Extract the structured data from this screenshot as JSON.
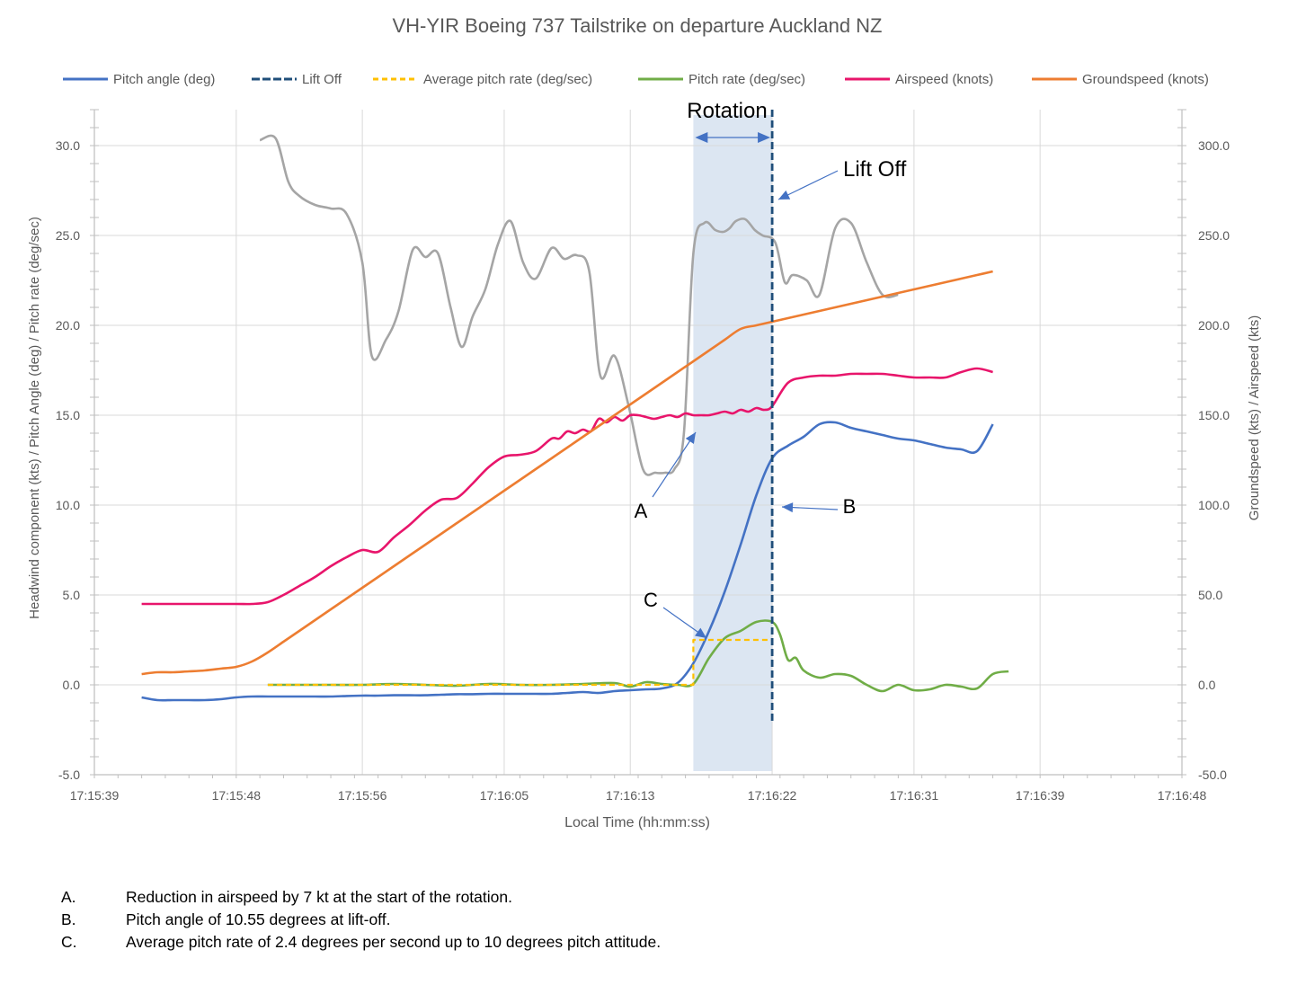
{
  "chart_data": {
    "type": "line",
    "title": "VH-YIR Boeing 737 Tailstrike on departure Auckland NZ",
    "xlabel": "Local Time (hh:mm:ss)",
    "ylabel_left": "Headwind component (kts) / Pitch Angle (deg) /  Pitch rate (deg/sec)",
    "ylabel_right": "Groundspeed (kts) / Airspeed (kts)",
    "x_unit": "seconds after 17:15:39",
    "xlim": [
      0,
      69
    ],
    "ylim_left": [
      -5,
      32
    ],
    "ylim_right": [
      -50,
      320
    ],
    "yticks_left": [
      "-5.0",
      "0.0",
      "5.0",
      "10.0",
      "15.0",
      "20.0",
      "25.0",
      "30.0"
    ],
    "yticks_right": [
      "-50.0",
      "0.0",
      "50.0",
      "100.0",
      "150.0",
      "200.0",
      "250.0",
      "300.0"
    ],
    "xticks": [
      "17:15:39",
      "17:15:48",
      "17:15:56",
      "17:16:05",
      "17:16:13",
      "17:16:22",
      "17:16:31",
      "17:16:39",
      "17:16:48"
    ],
    "grid": true,
    "legend_position": "top",
    "legend": [
      {
        "name": "Pitch angle (deg)",
        "color": "#4472C4",
        "dash": "solid"
      },
      {
        "name": "Lift Off",
        "color": "#1F4E79",
        "dash": "dashed-long"
      },
      {
        "name": "Average pitch rate (deg/sec)",
        "color": "#FFC000",
        "dash": "dashed"
      },
      {
        "name": "Pitch rate (deg/sec)",
        "color": "#70AD47",
        "dash": "solid"
      },
      {
        "name": "Airspeed (knots)",
        "color": "#E8156B",
        "dash": "solid"
      },
      {
        "name": "Groundspeed (knots)",
        "color": "#ED7D31",
        "dash": "solid"
      }
    ],
    "series": [
      {
        "name": "Headwind component (kts)",
        "axis": "left",
        "color": "#A5A5A5",
        "x": [
          10.5,
          11.5,
          12.3,
          13,
          14,
          15,
          16,
          17,
          17.6,
          18.5,
          19.3,
          20.2,
          21,
          21.8,
          22.6,
          23.3,
          24,
          24.8,
          25.6,
          26.4,
          27.2,
          28,
          29,
          29.8,
          30.6,
          31.4,
          32.1,
          33,
          33.9,
          34.8,
          35.6,
          36.2,
          36.8,
          37.4,
          38,
          38.7,
          39.4,
          39.9,
          40.3,
          40.7,
          41.3,
          41.9,
          42.4,
          43.2,
          43.8,
          44.3,
          45.2,
          46,
          47,
          48,
          49,
          50,
          51,
          52,
          53,
          54,
          55,
          56,
          56.5,
          57,
          57.5,
          58.2,
          59,
          59.6,
          60,
          60.6,
          61,
          61.5,
          62
        ],
        "y": [
          30.3,
          30.3,
          28,
          27.2,
          26.7,
          26.5,
          26.2,
          23.5,
          18.3,
          19.2,
          20.8,
          24.2,
          23.8,
          24.0,
          21,
          18.8,
          20.5,
          22,
          24.5,
          25.8,
          23.5,
          22.6,
          24.3,
          23.7,
          23.9,
          23,
          17.2,
          18.3,
          15.5,
          12.0,
          11.8,
          11.8,
          12.0,
          14,
          24,
          25.7,
          25.3,
          25.2,
          25.4,
          25.7,
          25.9,
          25.3,
          25.0,
          24.6,
          22.4,
          22.3,
          22.5,
          21.6,
          25.4,
          25.7,
          23.5,
          21.7,
          21.7,
          21.7,
          21.7,
          21.7,
          21.7,
          21.7,
          21.7,
          21.7,
          21.7,
          21.7,
          21.7,
          21.7,
          21.7,
          21.7,
          21.7,
          21.7,
          21.7
        ]
      },
      {
        "name": "Airspeed (knots)",
        "axis": "right",
        "x": [
          4,
          6,
          8,
          10,
          11,
          12,
          13,
          14,
          15,
          16,
          17,
          18,
          19,
          20,
          21,
          22,
          23,
          24,
          25,
          26,
          27,
          28,
          29,
          30,
          30.5,
          31,
          31.3,
          31.7,
          32,
          32.5,
          33,
          33.5,
          34,
          34.5,
          35,
          35.5,
          36,
          36.3,
          36.6,
          37,
          37.5,
          38,
          38.5,
          39,
          40,
          41,
          42,
          43,
          44,
          45,
          46,
          47,
          48,
          49,
          50,
          51,
          52,
          53,
          54,
          55,
          56,
          57,
          58,
          59,
          60,
          61
        ],
        "x_used": 46
      },
      {
        "name": "Groundspeed (knots)",
        "axis": "right",
        "x": [
          4,
          5,
          6,
          7,
          8,
          9,
          10,
          11,
          12,
          13,
          14,
          15,
          16,
          17,
          18,
          19,
          20,
          21,
          22,
          23,
          24,
          25,
          26,
          27,
          28,
          29,
          30,
          31,
          32,
          33,
          34,
          35,
          36,
          37,
          38,
          39,
          40,
          41,
          42,
          43,
          44,
          45,
          46,
          47,
          48,
          49,
          50,
          51,
          52,
          53,
          54,
          55,
          56,
          57,
          58,
          59,
          60,
          61,
          62
        ],
        "y": [
          6,
          6.5,
          7,
          7.5,
          8.5,
          10,
          13,
          18,
          24,
          30,
          36,
          42,
          48,
          54,
          60,
          66,
          72,
          78,
          84,
          90,
          96,
          102,
          108,
          114,
          120,
          126,
          132,
          138,
          144,
          150,
          156,
          162,
          168,
          174,
          180,
          186,
          192,
          198,
          200,
          202,
          204,
          206,
          208,
          210,
          212,
          214,
          216,
          218,
          220,
          222,
          224,
          226,
          228,
          230,
          232,
          234,
          236,
          238,
          240
        ],
        "used": false
      },
      {
        "name": "Pitch angle (deg)",
        "axis": "left",
        "x": [
          4,
          5,
          6,
          7,
          8,
          9,
          10,
          11,
          12,
          13,
          14,
          15,
          16,
          17,
          18,
          19,
          20,
          21,
          22,
          23,
          24,
          25,
          26,
          27,
          28,
          29,
          30,
          31,
          32,
          33,
          34,
          35,
          36,
          37,
          38,
          39,
          40,
          41,
          42,
          43,
          44,
          45,
          46,
          47,
          48,
          49,
          50,
          51,
          52,
          53,
          54,
          55,
          56,
          57,
          58,
          59,
          60,
          61,
          62
        ],
        "y": [
          -0.7,
          -0.85,
          -0.85,
          -0.85,
          -0.85,
          -0.8,
          -0.7,
          -0.65,
          -0.65,
          -0.65,
          -0.65,
          -0.65,
          -0.65,
          -0.62,
          -0.6,
          -0.6,
          -0.58,
          -0.58,
          -0.58,
          -0.55,
          -0.52,
          -0.52,
          -0.5,
          -0.5,
          -0.5,
          -0.5,
          -0.5,
          -0.45,
          -0.4,
          -0.45,
          -0.35,
          -0.3,
          -0.25,
          -0.2,
          0.1,
          1.2,
          3.0,
          5.2,
          7.8,
          10.55,
          12.6,
          13.3,
          13.8,
          14.5,
          14.6,
          14.3,
          14.1,
          13.9,
          13.7,
          13.6,
          13.4,
          13.2,
          13.1,
          13.0,
          12.9,
          12.8,
          13.3,
          13.9,
          14.5
        ],
        "used": false
      }
    ]
  }
}
